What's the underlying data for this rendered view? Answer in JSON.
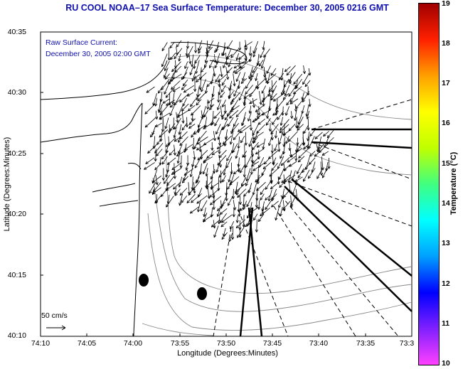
{
  "title": "RU COOL   NOAA–17  Sea Surface Temperature:  December 30, 2005 0216 GMT",
  "annotation_line1": "Raw Surface Current:",
  "annotation_line2": "December 30, 2005 02:00 GMT",
  "x_axis": {
    "label": "Longitude (Degrees:Minutes)",
    "ticks": [
      "74:10",
      "74:05",
      "74:00",
      "73:55",
      "73:50",
      "73:45",
      "73:40",
      "73:35",
      "73:3"
    ]
  },
  "y_axis": {
    "label": "Latitude (Degrees:Minutes)",
    "ticks": [
      "40:35",
      "40:30",
      "40:25",
      "40:20",
      "40:15",
      "40:10"
    ]
  },
  "scale_arrow_label": "50 cm/s",
  "colorbar": {
    "title": "Temperature (°C)",
    "ticks": [
      "19",
      "18",
      "17",
      "16",
      "15",
      "14",
      "13",
      "12",
      "11",
      "10"
    ],
    "range": [
      10,
      19
    ]
  },
  "colors": {
    "title_text": "#1010b0",
    "coastline": "#000000",
    "bathymetry": "#888888"
  },
  "map_features": [
    "coastline",
    "bathymetry-contours",
    "radar-beam-lines",
    "current-vectors",
    "land-markers"
  ]
}
